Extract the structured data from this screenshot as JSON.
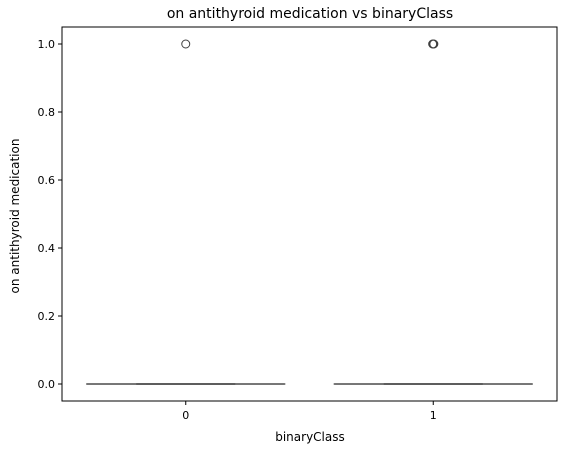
{
  "chart_data": {
    "type": "box",
    "title": "on antithyroid medication vs binaryClass",
    "xlabel": "binaryClass",
    "ylabel": "on antithyroid medication",
    "categories": [
      "0",
      "1"
    ],
    "ylim": [
      -0.05,
      1.05
    ],
    "yticks": [
      0.0,
      0.2,
      0.4,
      0.6,
      0.8,
      1.0
    ],
    "ytick_labels": [
      "0.0",
      "0.2",
      "0.4",
      "0.6",
      "0.8",
      "1.0"
    ],
    "boxes": [
      {
        "category": "0",
        "q1": 0.0,
        "median": 0.0,
        "q3": 0.0,
        "whisker_low": 0.0,
        "whisker_high": 0.0,
        "outliers": [
          1.0
        ]
      },
      {
        "category": "1",
        "q1": 0.0,
        "median": 0.0,
        "q3": 0.0,
        "whisker_low": 0.0,
        "whisker_high": 0.0,
        "outliers": [
          1.0,
          1.0,
          1.0
        ]
      }
    ],
    "grid": false,
    "colors": {
      "box_line": "#3f3f3f",
      "axes": "#000000"
    }
  }
}
